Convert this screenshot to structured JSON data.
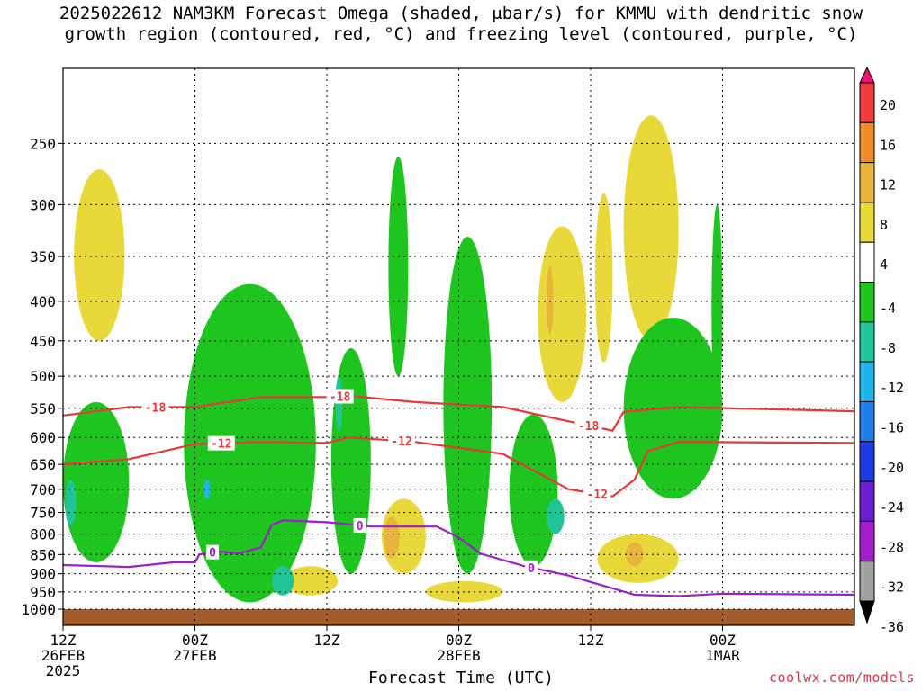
{
  "title": {
    "line1": "2025022612 NAM3KM Forecast Omega (shaded, μbar/s) for KMMU with dendritic snow",
    "line2": "growth region (contoured, red, °C) and freezing level (contoured, purple, °C)"
  },
  "credit": "coolwx.com/models",
  "chart_data": {
    "type": "time-height",
    "title": "2025022612 NAM3KM Forecast Omega (shaded, μbar/s) for KMMU with dendritic snow growth region (contoured, red, °C) and freezing level (contoured, purple, °C)",
    "xlabel": "Forecast Time (UTC)",
    "ylabel": "",
    "x_range_hours": [
      0,
      36
    ],
    "x_ticks": [
      {
        "hour": 0,
        "line1": "12Z",
        "line2": "26FEB",
        "line3": "2025"
      },
      {
        "hour": 6,
        "line1": "00Z",
        "line2": "27FEB",
        "line3": ""
      },
      {
        "hour": 12,
        "line1": "12Z",
        "line2": "",
        "line3": ""
      },
      {
        "hour": 18,
        "line1": "00Z",
        "line2": "28FEB",
        "line3": ""
      },
      {
        "hour": 24,
        "line1": "12Z",
        "line2": "",
        "line3": ""
      },
      {
        "hour": 30,
        "line1": "00Z",
        "line2": "1MAR",
        "line3": ""
      }
    ],
    "y_scale": "log-pressure",
    "y_range_hpa": [
      1000,
      200
    ],
    "y_ticks": [
      250,
      300,
      350,
      400,
      450,
      500,
      550,
      600,
      650,
      700,
      750,
      800,
      850,
      900,
      950,
      1000
    ],
    "grid": true,
    "colorbar": {
      "labels": [
        "20",
        "16",
        "12",
        "8",
        "4",
        "-4",
        "-8",
        "-12",
        "-16",
        "-20",
        "-24",
        "-28",
        "-32",
        "-36"
      ],
      "colors": [
        "#e8146e",
        "#ef3d3d",
        "#ee8a2a",
        "#e6b53a",
        "#e8d83a",
        "#ffffff",
        "#1fc51f",
        "#1fc596",
        "#1fb4e8",
        "#1e7be8",
        "#1e3be0",
        "#6a1fd0",
        "#a01fc8",
        "#a0a0a0",
        "#000000"
      ]
    },
    "contours": {
      "dgz_red": {
        "color": "#e8383a",
        "labels": [
          "-18",
          "-12",
          "-18",
          "-12",
          "-18",
          "-12"
        ],
        "minus18": [
          [
            0,
            562
          ],
          [
            3,
            548
          ],
          [
            6,
            548
          ],
          [
            9,
            532
          ],
          [
            12,
            532
          ],
          [
            13,
            530
          ],
          [
            16,
            540
          ],
          [
            20,
            548
          ],
          [
            24,
            580
          ],
          [
            25,
            588
          ],
          [
            25.5,
            556
          ],
          [
            28,
            548
          ],
          [
            36,
            555
          ]
        ],
        "minus12": [
          [
            0,
            650
          ],
          [
            3,
            640
          ],
          [
            6,
            612
          ],
          [
            9,
            608
          ],
          [
            12,
            610
          ],
          [
            13,
            600
          ],
          [
            16,
            608
          ],
          [
            20,
            630
          ],
          [
            23,
            700
          ],
          [
            25,
            715
          ],
          [
            26,
            680
          ],
          [
            26.6,
            625
          ],
          [
            28,
            608
          ],
          [
            36,
            610
          ]
        ]
      },
      "freezing_purple": {
        "color": "#9e1fc8",
        "label": "0",
        "points": [
          [
            0,
            877
          ],
          [
            3,
            882
          ],
          [
            5,
            870
          ],
          [
            6,
            870
          ],
          [
            6.2,
            850
          ],
          [
            7,
            842
          ],
          [
            8,
            847
          ],
          [
            9,
            832
          ],
          [
            9.5,
            778
          ],
          [
            10,
            768
          ],
          [
            12,
            772
          ],
          [
            14,
            782
          ],
          [
            17,
            782
          ],
          [
            18,
            808
          ],
          [
            19,
            848
          ],
          [
            21,
            880
          ],
          [
            23,
            905
          ],
          [
            26,
            958
          ],
          [
            28,
            962
          ],
          [
            30,
            955
          ],
          [
            36,
            958
          ]
        ]
      }
    },
    "omega_shading": [
      {
        "level": 4,
        "color": "#e8d83a",
        "shapes": [
          {
            "x": [
              0.5,
              2.8
            ],
            "p": [
              270,
              450
            ]
          },
          {
            "x": [
              21.6,
              23.8
            ],
            "p": [
              320,
              540
            ]
          },
          {
            "x": [
              25.5,
              28
            ],
            "p": [
              230,
              450
            ]
          },
          {
            "x": [
              24.2,
              25
            ],
            "p": [
              290,
              480
            ]
          },
          {
            "x": [
              10,
              12.5
            ],
            "p": [
              880,
              960
            ]
          },
          {
            "x": [
              16.5,
              20
            ],
            "p": [
              920,
              980
            ]
          },
          {
            "x": [
              24.3,
              28
            ],
            "p": [
              800,
              925
            ]
          },
          {
            "x": [
              14.5,
              16.5
            ],
            "p": [
              720,
              900
            ]
          },
          {
            "x": [
              12.5,
              13
            ],
            "p": [
              580,
              680
            ]
          }
        ]
      },
      {
        "level": 8,
        "color": "#e6b53a",
        "shapes": [
          {
            "x": [
              25.6,
              26.4
            ],
            "p": [
              820,
              880
            ]
          },
          {
            "x": [
              14.6,
              15.3
            ],
            "p": [
              760,
              860
            ]
          },
          {
            "x": [
              22,
              22.3
            ],
            "p": [
              360,
              440
            ]
          }
        ]
      },
      {
        "level": 12,
        "color": "#ee8a2a",
        "shapes": [
          {
            "x": [
              13.1,
              13.4
            ],
            "p": [
              760,
              880
            ]
          }
        ]
      },
      {
        "level": 16,
        "color": "#ef3d3d",
        "shapes": [
          {
            "x": [
              13.2,
              13.3
            ],
            "p": [
              800,
              860
            ]
          }
        ]
      },
      {
        "level": -4,
        "color": "#1fc51f",
        "shapes": [
          {
            "x": [
              0,
              3
            ],
            "p": [
              540,
              870
            ]
          },
          {
            "x": [
              5.5,
              11.5
            ],
            "p": [
              380,
              980
            ]
          },
          {
            "x": [
              12.2,
              14
            ],
            "p": [
              460,
              900
            ]
          },
          {
            "x": [
              14.8,
              15.7
            ],
            "p": [
              260,
              500
            ]
          },
          {
            "x": [
              17.3,
              19.5
            ],
            "p": [
              330,
              900
            ]
          },
          {
            "x": [
              20.3,
              22.5
            ],
            "p": [
              560,
              880
            ]
          },
          {
            "x": [
              25.5,
              30
            ],
            "p": [
              420,
              720
            ]
          },
          {
            "x": [
              29.5,
              30
            ],
            "p": [
              300,
              560
            ]
          }
        ]
      },
      {
        "level": -8,
        "color": "#1fc596",
        "shapes": [
          {
            "x": [
              0.1,
              0.6
            ],
            "p": [
              680,
              780
            ]
          },
          {
            "x": [
              9.5,
              10.5
            ],
            "p": [
              880,
              960
            ]
          },
          {
            "x": [
              12.4,
              12.7
            ],
            "p": [
              500,
              590
            ]
          },
          {
            "x": [
              22,
              22.8
            ],
            "p": [
              720,
              800
            ]
          }
        ]
      },
      {
        "level": -12,
        "color": "#1fb4e8",
        "shapes": [
          {
            "x": [
              6.4,
              6.7
            ],
            "p": [
              680,
              720
            ]
          }
        ]
      }
    ],
    "surface": {
      "color": "#a55a2a",
      "pressure_hpa": 1000
    }
  },
  "labels": {
    "xlabel": "Forecast Time (UTC)"
  }
}
